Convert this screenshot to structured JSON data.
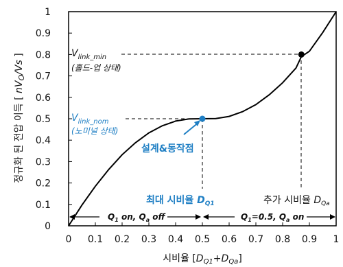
{
  "chart_data": {
    "type": "line",
    "xlabel": {
      "main": "시비율 [",
      "s1": "D",
      "s1sub": "Q1",
      "plus": "+",
      "s2": "D",
      "s2sub": "Qa",
      "end": "]"
    },
    "ylabel": {
      "main": "정규화 된 전압 이득 [ ",
      "var": "nV",
      "sub": "O",
      "tail": "/Vs",
      "end": " ]"
    },
    "xlim": [
      0,
      1
    ],
    "ylim": [
      0,
      1
    ],
    "x_ticks": [
      "0",
      "0.1",
      "0.2",
      "0.3",
      "0.4",
      "0.5",
      "0.6",
      "0.7",
      "0.8",
      "0.9",
      "1"
    ],
    "y_ticks": [
      "0",
      "0.1",
      "0.2",
      "0.3",
      "0.4",
      "0.5",
      "0.6",
      "0.7",
      "0.8",
      "0.9",
      "1"
    ],
    "grid": false,
    "series": [
      {
        "color": "#000000",
        "points": [
          [
            0,
            0
          ],
          [
            0.05,
            0.097
          ],
          [
            0.1,
            0.185
          ],
          [
            0.15,
            0.263
          ],
          [
            0.2,
            0.332
          ],
          [
            0.25,
            0.388
          ],
          [
            0.3,
            0.434
          ],
          [
            0.35,
            0.467
          ],
          [
            0.4,
            0.489
          ],
          [
            0.45,
            0.499
          ],
          [
            0.5,
            0.5
          ],
          [
            0.55,
            0.501
          ],
          [
            0.6,
            0.511
          ],
          [
            0.65,
            0.533
          ],
          [
            0.7,
            0.566
          ],
          [
            0.75,
            0.612
          ],
          [
            0.8,
            0.668
          ],
          [
            0.85,
            0.737
          ],
          [
            0.87,
            0.79
          ],
          [
            0.9,
            0.815
          ],
          [
            0.95,
            0.903
          ],
          [
            1.0,
            1.0
          ]
        ]
      }
    ],
    "markers": [
      {
        "x": 0.5,
        "y": 0.5,
        "color": "#1f7fc4"
      },
      {
        "x": 0.87,
        "y": 0.8,
        "color": "#000000"
      }
    ],
    "annotations": {
      "vnom": {
        "main": "V",
        "sub": "link_nom",
        "note": "(노미널 상태)",
        "color": "#1f7fc4"
      },
      "vmin": {
        "main": "V",
        "sub": "link_min",
        "note": "(홀드-업 상태)",
        "color": "#000000"
      },
      "design_point": "설계&동작점",
      "max_duty": {
        "text": "최대 시비율 ",
        "var": "D",
        "sub": "Q1"
      },
      "extra_duty": {
        "text": "추가 시비율 ",
        "var": "D",
        "sub": "Qa"
      },
      "region_left": {
        "q1": "Q",
        "q1sub": "1",
        "mid": " on, ",
        "qa": "Q",
        "qasub": "a",
        "end": " off"
      },
      "region_right": {
        "q1": "Q",
        "q1sub": "1",
        "mid": "=0.5, ",
        "qa": "Q",
        "qasub": "a",
        "end": " on"
      }
    }
  }
}
